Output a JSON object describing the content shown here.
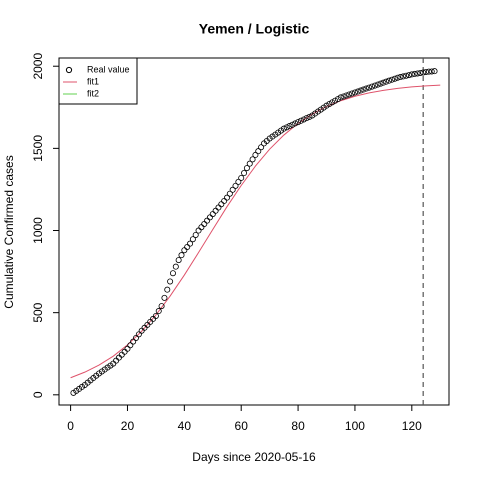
{
  "chart_data": {
    "type": "scatter",
    "title": "Yemen / Logistic",
    "x_label": "Days since 2020-05-16",
    "y_label": "Cumulative Confirmed cases",
    "xlim": [
      -4.08,
      133.08
    ],
    "ylim": [
      -62,
      2050
    ],
    "xticks": [
      0,
      20,
      40,
      60,
      80,
      100,
      120
    ],
    "yticks": [
      0,
      500,
      1000,
      1500,
      2000
    ],
    "vline": 124,
    "legend_position": "topleft",
    "points": {
      "name": "Real value",
      "color": "#000000",
      "x": [
        1,
        2,
        3,
        4,
        5,
        6,
        7,
        8,
        9,
        10,
        11,
        12,
        13,
        14,
        15,
        16,
        17,
        18,
        19,
        20,
        21,
        22,
        23,
        24,
        25,
        26,
        27,
        28,
        29,
        30,
        31,
        32,
        33,
        34,
        35,
        36,
        37,
        38,
        39,
        40,
        41,
        42,
        43,
        44,
        45,
        46,
        47,
        48,
        49,
        50,
        51,
        52,
        53,
        54,
        55,
        56,
        57,
        58,
        59,
        60,
        61,
        62,
        63,
        64,
        65,
        66,
        67,
        68,
        69,
        70,
        71,
        72,
        73,
        74,
        75,
        76,
        77,
        78,
        79,
        80,
        81,
        82,
        83,
        84,
        85,
        86,
        87,
        88,
        89,
        90,
        91,
        92,
        93,
        94,
        95,
        96,
        97,
        98,
        99,
        100,
        101,
        102,
        103,
        104,
        105,
        106,
        107,
        108,
        109,
        110,
        111,
        112,
        113,
        114,
        115,
        116,
        117,
        118,
        119,
        120,
        121,
        122,
        123,
        124,
        125,
        126,
        127,
        128
      ],
      "values": [
        12,
        24,
        36,
        48,
        60,
        74,
        88,
        102,
        116,
        130,
        142,
        154,
        166,
        178,
        190,
        208,
        226,
        244,
        262,
        280,
        302,
        324,
        346,
        368,
        390,
        408,
        426,
        444,
        462,
        480,
        510,
        540,
        590,
        640,
        690,
        740,
        780,
        820,
        850,
        880,
        900,
        920,
        947,
        973,
        1000,
        1020,
        1040,
        1060,
        1080,
        1100,
        1120,
        1140,
        1160,
        1180,
        1200,
        1224,
        1248,
        1272,
        1296,
        1320,
        1350,
        1380,
        1407,
        1433,
        1460,
        1483,
        1507,
        1530,
        1545,
        1560,
        1572,
        1584,
        1596,
        1608,
        1620,
        1628,
        1636,
        1644,
        1652,
        1660,
        1668,
        1676,
        1684,
        1692,
        1700,
        1712,
        1724,
        1736,
        1748,
        1760,
        1770,
        1780,
        1790,
        1800,
        1810,
        1816,
        1822,
        1828,
        1834,
        1840,
        1846,
        1852,
        1858,
        1864,
        1870,
        1876,
        1882,
        1888,
        1894,
        1900,
        1906,
        1912,
        1918,
        1924,
        1930,
        1934,
        1938,
        1942,
        1946,
        1950,
        1953,
        1956,
        1959,
        1962,
        1965,
        1967,
        1968,
        1970
      ]
    },
    "series": [
      {
        "name": "fit1",
        "color": "#df536b",
        "x": [
          0,
          5,
          10,
          15,
          20,
          25,
          30,
          35,
          40,
          45,
          50,
          55,
          60,
          65,
          70,
          75,
          80,
          85,
          90,
          95,
          100,
          105,
          110,
          115,
          120,
          125,
          130
        ],
        "values": [
          104,
          138,
          181,
          235,
          304,
          387,
          486,
          601,
          729,
          866,
          1006,
          1145,
          1274,
          1392,
          1495,
          1581,
          1652,
          1709,
          1755,
          1790,
          1817,
          1838,
          1853,
          1865,
          1874,
          1880,
          1885
        ]
      },
      {
        "name": "fit2",
        "color": "#61d04f",
        "x": [],
        "values": []
      }
    ]
  }
}
